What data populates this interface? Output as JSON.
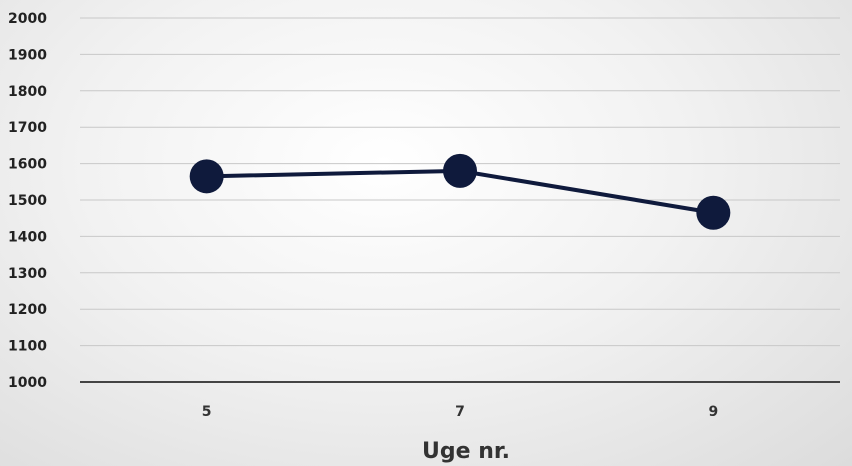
{
  "chart_data": {
    "type": "line",
    "title": "",
    "xlabel": "Uge nr.",
    "ylabel": "",
    "categories": [
      "5",
      "7",
      "9"
    ],
    "series": [
      {
        "values": [
          1565,
          1580,
          1465
        ]
      }
    ],
    "ylim": [
      1000,
      2000
    ],
    "yticks": [
      1000,
      1100,
      1200,
      1300,
      1400,
      1500,
      1600,
      1700,
      1800,
      1900,
      2000
    ],
    "grid": true,
    "legend": "none",
    "colors": {
      "line": "#0f1a3c",
      "marker": "#0f1a3c",
      "grid": "#c8c8c8",
      "axis": "#444444"
    }
  }
}
